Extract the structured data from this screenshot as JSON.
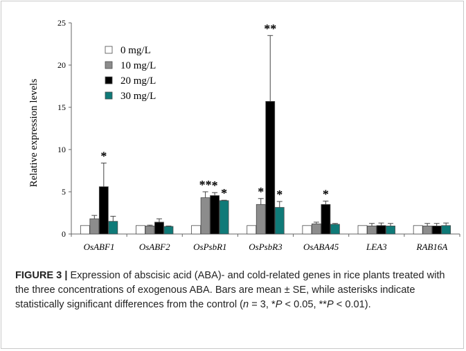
{
  "chart_data": {
    "type": "bar",
    "title": "",
    "xlabel": "",
    "ylabel": "Relative expression levels",
    "ylim": [
      0,
      25
    ],
    "yticks": [
      0,
      5,
      10,
      15,
      20,
      25
    ],
    "grid": false,
    "legend_position": "top-left",
    "categories": [
      "OsABF1",
      "OsABF2",
      "OsPsbR1",
      "OsPsbR3",
      "OsABA45",
      "LEA3",
      "RAB16A"
    ],
    "series": [
      {
        "name": "0 mg/L",
        "color": "#ffffff",
        "values": [
          1,
          1,
          1,
          1,
          1,
          1,
          1
        ],
        "errors": [
          0,
          0,
          0,
          0,
          0,
          0,
          0
        ],
        "marks": [
          "",
          "",
          "",
          "",
          "",
          "",
          ""
        ]
      },
      {
        "name": "10 mg/L",
        "color": "#8c8c8c",
        "values": [
          1.8,
          0.95,
          4.3,
          3.5,
          1.2,
          0.95,
          0.95
        ],
        "errors": [
          0.4,
          0.1,
          0.7,
          0.7,
          0.2,
          0.3,
          0.3
        ],
        "marks": [
          "",
          "",
          "**",
          "*",
          "",
          "",
          ""
        ]
      },
      {
        "name": "20 mg/L",
        "color": "#000000",
        "values": [
          5.6,
          1.4,
          4.55,
          15.7,
          3.5,
          1.0,
          0.95
        ],
        "errors": [
          2.8,
          0.4,
          0.35,
          7.8,
          0.4,
          0.3,
          0.3
        ],
        "marks": [
          "*",
          "",
          "*",
          "**",
          "*",
          "",
          ""
        ]
      },
      {
        "name": "30 mg/L",
        "color": "#0f7a78",
        "values": [
          1.5,
          0.9,
          3.95,
          3.15,
          1.15,
          0.95,
          1.0
        ],
        "errors": [
          0.6,
          0.05,
          0.05,
          0.7,
          0.1,
          0.3,
          0.3
        ],
        "marks": [
          "",
          "",
          "*",
          "*",
          "",
          "",
          ""
        ]
      }
    ]
  },
  "caption": {
    "label": "FIGURE 3 |",
    "text": " Expression of abscisic acid (ABA)- and cold-related genes in rice plants treated with the three concentrations of exogenous ABA. Bars are mean ± SE, while asterisks indicate statistically significant differences from the control (",
    "n_sym": "n",
    "n_val": " = 3, *",
    "p1_sym": "P",
    "p1_val": " < 0.05, **",
    "p2_sym": "P",
    "p2_val": " < 0.01)."
  }
}
